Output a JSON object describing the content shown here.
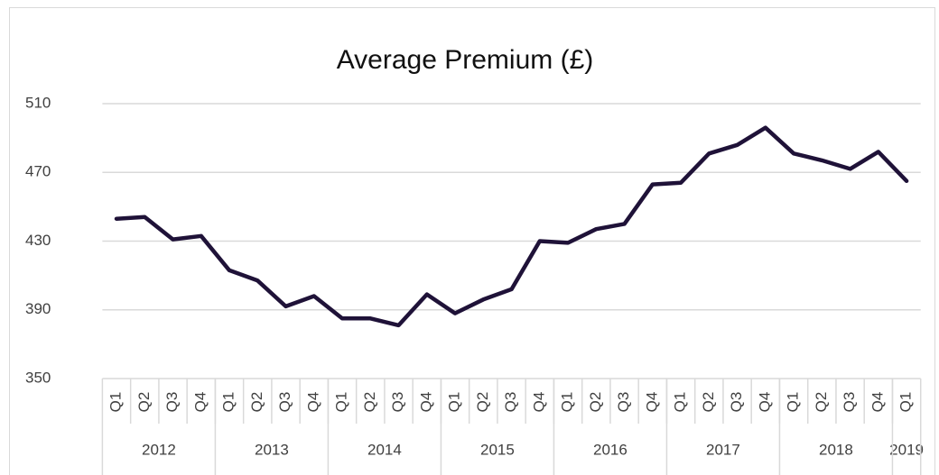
{
  "chart_data": {
    "type": "line",
    "title": "Average Premium (£)",
    "groups": [
      {
        "label": "2012",
        "categories": [
          "Q1",
          "Q2",
          "Q3",
          "Q4"
        ]
      },
      {
        "label": "2013",
        "categories": [
          "Q1",
          "Q2",
          "Q3",
          "Q4"
        ]
      },
      {
        "label": "2014",
        "categories": [
          "Q1",
          "Q2",
          "Q3",
          "Q4"
        ]
      },
      {
        "label": "2015",
        "categories": [
          "Q1",
          "Q2",
          "Q3",
          "Q4"
        ]
      },
      {
        "label": "2016",
        "categories": [
          "Q1",
          "Q2",
          "Q3",
          "Q4"
        ]
      },
      {
        "label": "2017",
        "categories": [
          "Q1",
          "Q2",
          "Q3",
          "Q4"
        ]
      },
      {
        "label": "2018",
        "categories": [
          "Q1",
          "Q2",
          "Q3",
          "Q4"
        ]
      },
      {
        "label": "2019",
        "categories": [
          "Q1"
        ]
      }
    ],
    "values": [
      443,
      444,
      431,
      433,
      413,
      407,
      392,
      398,
      385,
      385,
      381,
      399,
      388,
      396,
      402,
      430,
      429,
      437,
      440,
      463,
      464,
      481,
      486,
      496,
      481,
      477,
      472,
      482,
      465
    ],
    "color": "#1f1238",
    "ylim": [
      350,
      510
    ],
    "yticks": [
      350,
      390,
      430,
      470,
      510
    ],
    "grid": true
  }
}
